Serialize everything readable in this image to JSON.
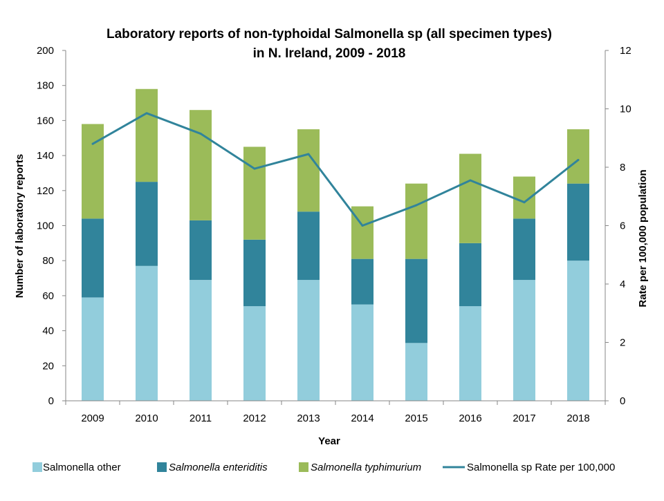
{
  "chart_data": {
    "type": "bar",
    "stacked": true,
    "title_line1": "Laboratory reports of non-typhoidal Salmonella sp (all specimen types)",
    "title_line2": "in N. Ireland, 2009 - 2018",
    "xlabel": "Year",
    "ylabel": "Number of laboratory reports",
    "y2label": "Rate per 100,000 population",
    "ylim": [
      0,
      200
    ],
    "yticks": [
      "0",
      "20",
      "40",
      "60",
      "80",
      "100",
      "120",
      "140",
      "160",
      "180",
      "200"
    ],
    "y2lim": [
      0,
      12
    ],
    "y2ticks": [
      "0",
      "2",
      "4",
      "6",
      "8",
      "10",
      "12"
    ],
    "categories": [
      "2009",
      "2010",
      "2011",
      "2012",
      "2013",
      "2014",
      "2015",
      "2016",
      "2017",
      "2018"
    ],
    "series": [
      {
        "name": "Salmonella other",
        "italic": false,
        "color": "#92cddc",
        "values": [
          59,
          77,
          69,
          54,
          69,
          55,
          33,
          54,
          69,
          80
        ]
      },
      {
        "name": "Salmonella enteriditis",
        "italic": true,
        "color": "#31849b",
        "values": [
          45,
          48,
          34,
          38,
          39,
          26,
          48,
          36,
          35,
          44
        ]
      },
      {
        "name": "Salmonella typhimurium",
        "italic": true,
        "color": "#9bbb59",
        "values": [
          54,
          53,
          63,
          53,
          47,
          30,
          43,
          51,
          24,
          31
        ]
      }
    ],
    "line_series": {
      "name": "Salmonella sp Rate per 100,000",
      "color": "#31849b",
      "axis": "right",
      "values": [
        8.8,
        9.85,
        9.15,
        7.95,
        8.45,
        6.0,
        6.7,
        7.55,
        6.8,
        8.25
      ]
    },
    "legend_position": "bottom"
  }
}
